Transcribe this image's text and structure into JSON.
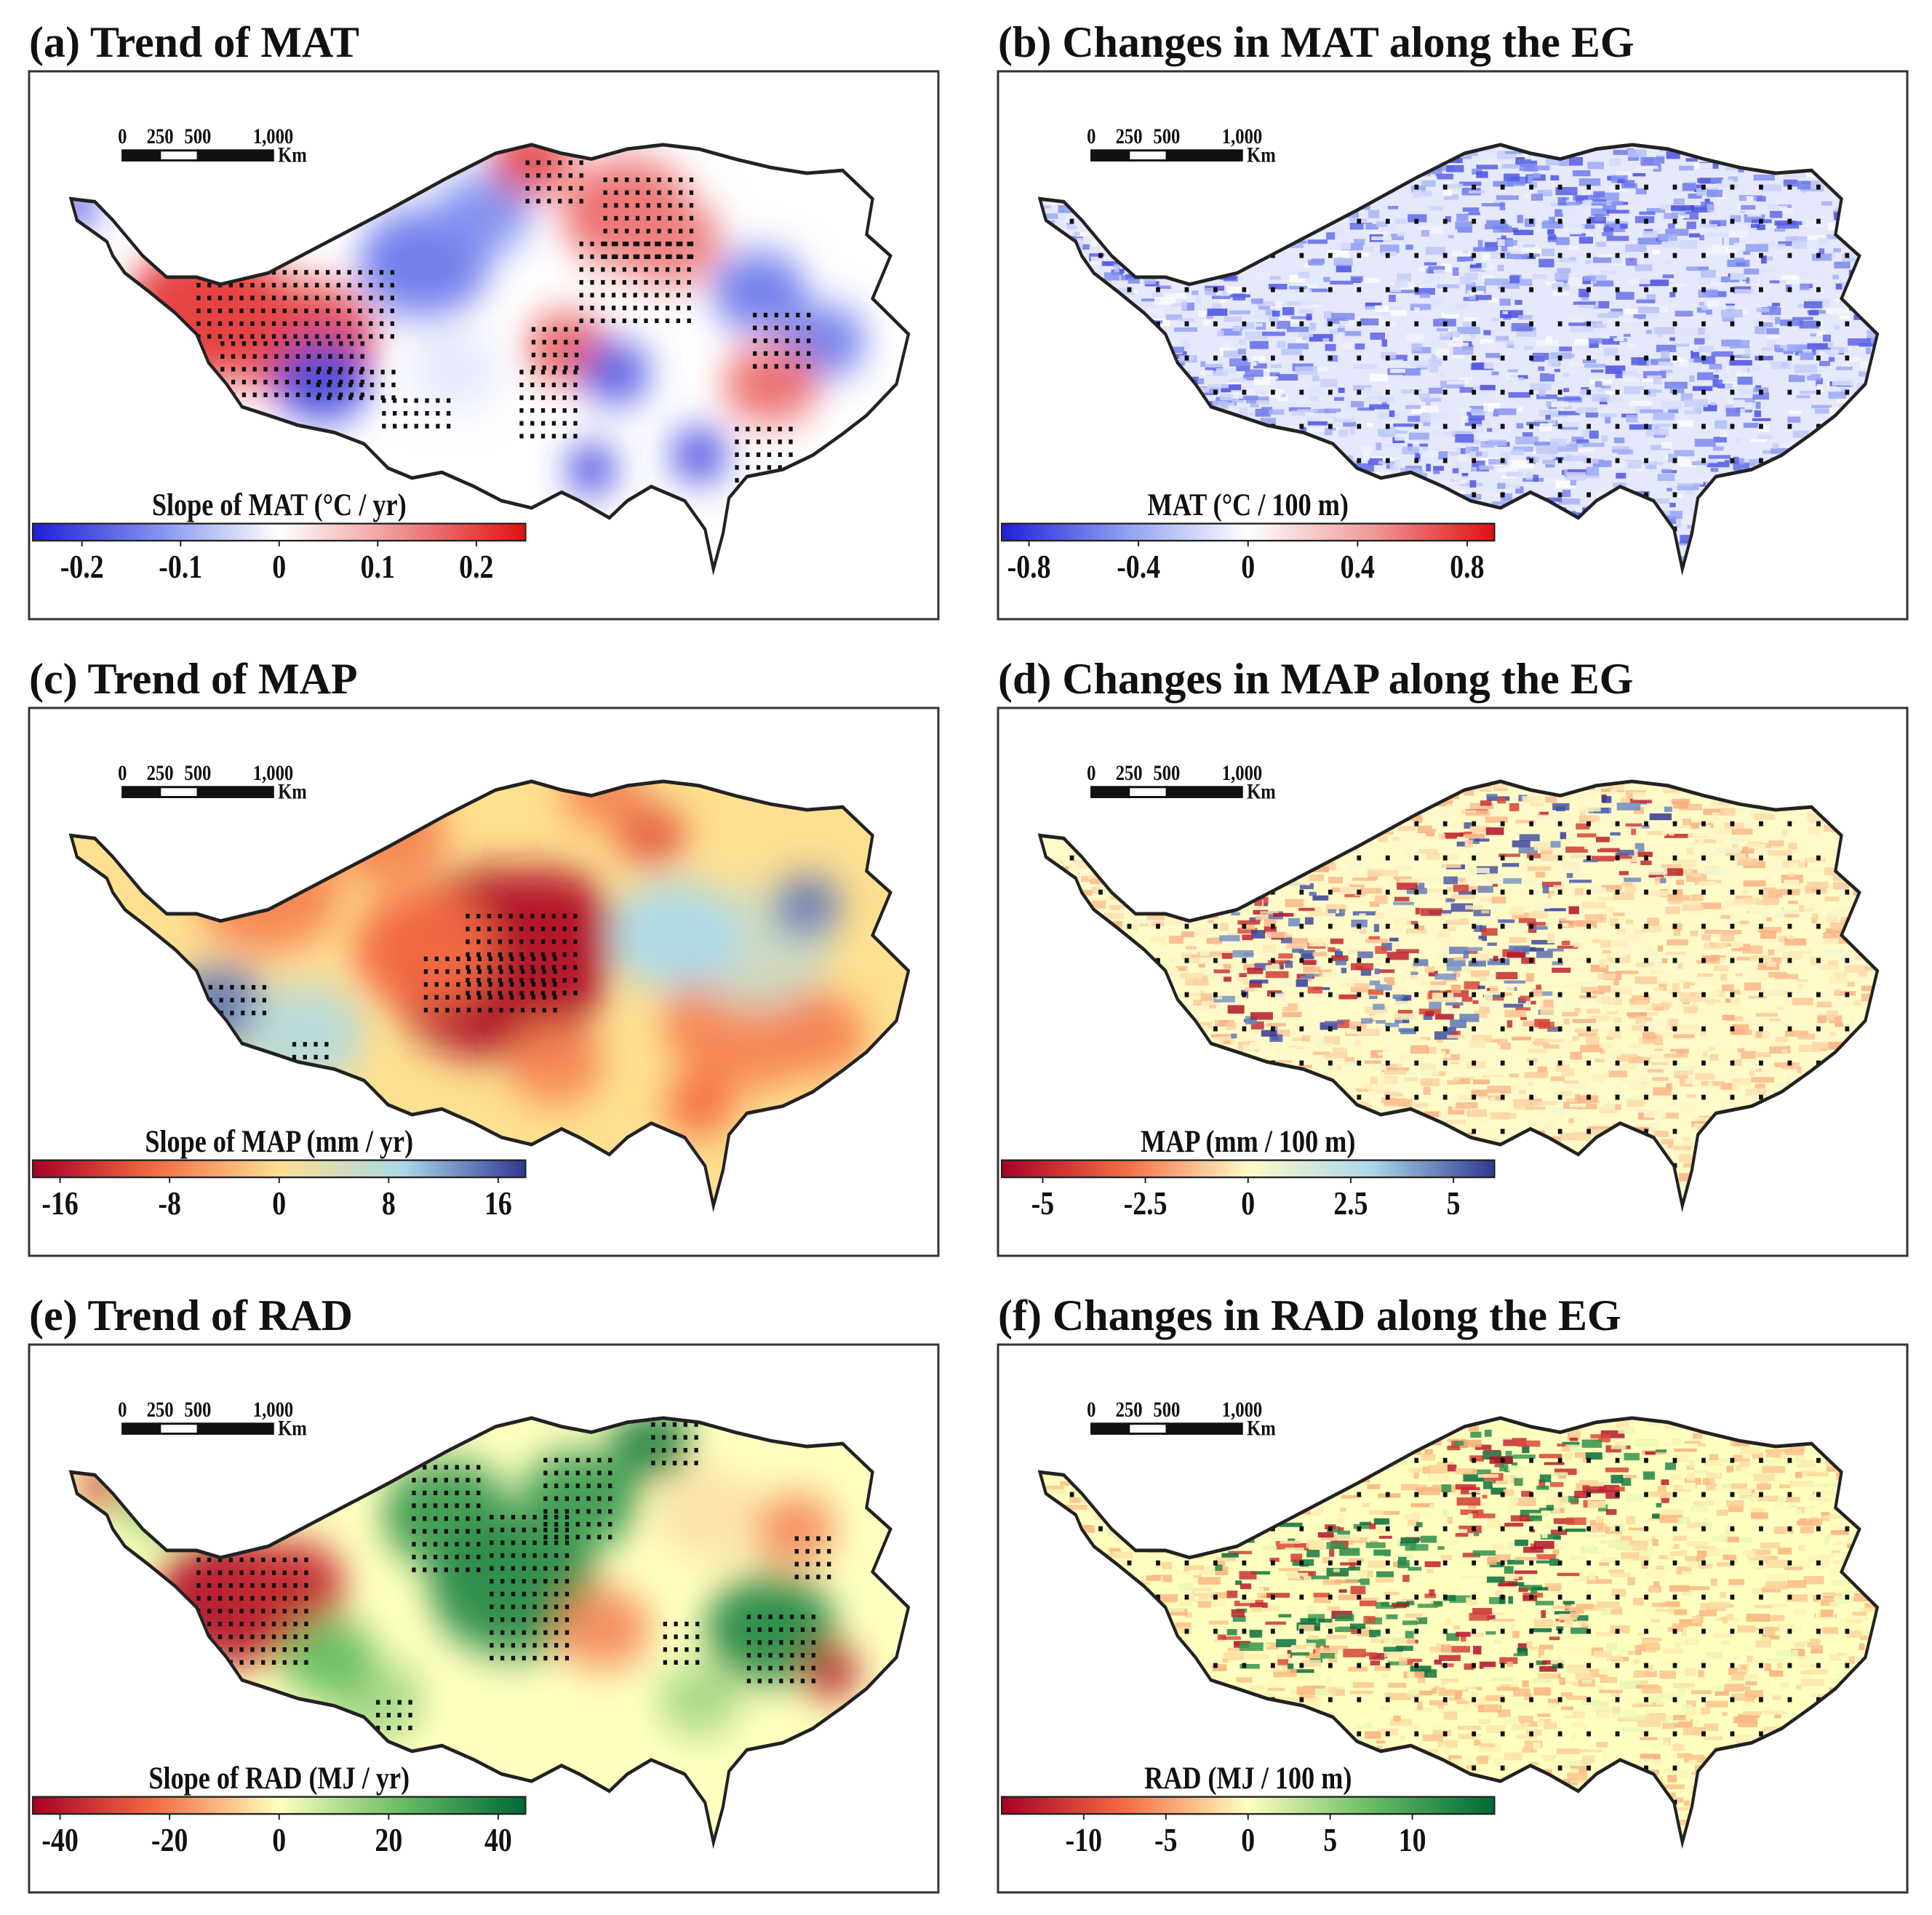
{
  "figure": {
    "scalebar": {
      "labels": [
        "0",
        "250",
        "500",
        "1,000"
      ],
      "unit": "Km"
    },
    "panels": [
      {
        "id": "a",
        "title": "(a) Trend of MAT",
        "variable": "MAT",
        "style": "trend",
        "colorbar": {
          "title": "Slope of MAT (°C / yr)",
          "ticks": [
            "-0.2",
            "-0.1",
            "0",
            "0.1",
            "0.2"
          ],
          "tick_values": [
            -0.2,
            -0.1,
            0,
            0.1,
            0.2
          ],
          "range": [
            -0.25,
            0.25
          ],
          "colors": [
            "#1f1fd6",
            "#7f8ff0",
            "#ffffff",
            "#f08f8f",
            "#e01010"
          ]
        }
      },
      {
        "id": "b",
        "title": "(b) Changes in MAT along the EG",
        "variable": "MAT",
        "style": "gradient",
        "colorbar": {
          "title": "MAT (°C / 100 m)",
          "ticks": [
            "-0.8",
            "-0.4",
            "0",
            "0.4",
            "0.8"
          ],
          "tick_values": [
            -0.8,
            -0.4,
            0,
            0.4,
            0.8
          ],
          "range": [
            -0.9,
            0.9
          ],
          "colors": [
            "#1f1fd6",
            "#8f9ff2",
            "#ffffff",
            "#f09a9a",
            "#e01010"
          ]
        }
      },
      {
        "id": "c",
        "title": "(c) Trend of MAP",
        "variable": "MAP",
        "style": "trend",
        "colorbar": {
          "title": "Slope of MAP (mm / yr)",
          "ticks": [
            "-16",
            "-8",
            "0",
            "8",
            "16"
          ],
          "tick_values": [
            -16,
            -8,
            0,
            8,
            16
          ],
          "range": [
            -18,
            18
          ],
          "colors": [
            "#a50026",
            "#f46d43",
            "#fee090",
            "#abd9e9",
            "#313695"
          ]
        }
      },
      {
        "id": "d",
        "title": "(d) Changes in MAP along the EG",
        "variable": "MAP",
        "style": "gradient",
        "colorbar": {
          "title": "MAP (mm / 100 m)",
          "ticks": [
            "-5",
            "-2.5",
            "0",
            "2.5",
            "5"
          ],
          "tick_values": [
            -5,
            -2.5,
            0,
            2.5,
            5
          ],
          "range": [
            -6,
            6
          ],
          "colors": [
            "#a50026",
            "#f46d43",
            "#fffac8",
            "#abd9e9",
            "#313695"
          ]
        }
      },
      {
        "id": "e",
        "title": "(e) Trend of RAD",
        "variable": "RAD",
        "style": "trend",
        "colorbar": {
          "title": "Slope of RAD (MJ / yr)",
          "ticks": [
            "-40",
            "-20",
            "0",
            "20",
            "40"
          ],
          "tick_values": [
            -40,
            -20,
            0,
            20,
            40
          ],
          "range": [
            -45,
            45
          ],
          "colors": [
            "#a50026",
            "#f46d43",
            "#ffffbf",
            "#66bd63",
            "#006837"
          ]
        }
      },
      {
        "id": "f",
        "title": "(f) Changes in RAD along the EG",
        "variable": "RAD",
        "style": "gradient",
        "colorbar": {
          "title": "RAD (MJ / 100 m)",
          "ticks": [
            "-10",
            "-5",
            "0",
            "5",
            "10"
          ],
          "tick_values": [
            -10,
            -5,
            0,
            5,
            10
          ],
          "range": [
            -15,
            15
          ],
          "colors": [
            "#a50026",
            "#f46d43",
            "#ffffbf",
            "#66bd63",
            "#006837"
          ]
        }
      }
    ]
  }
}
